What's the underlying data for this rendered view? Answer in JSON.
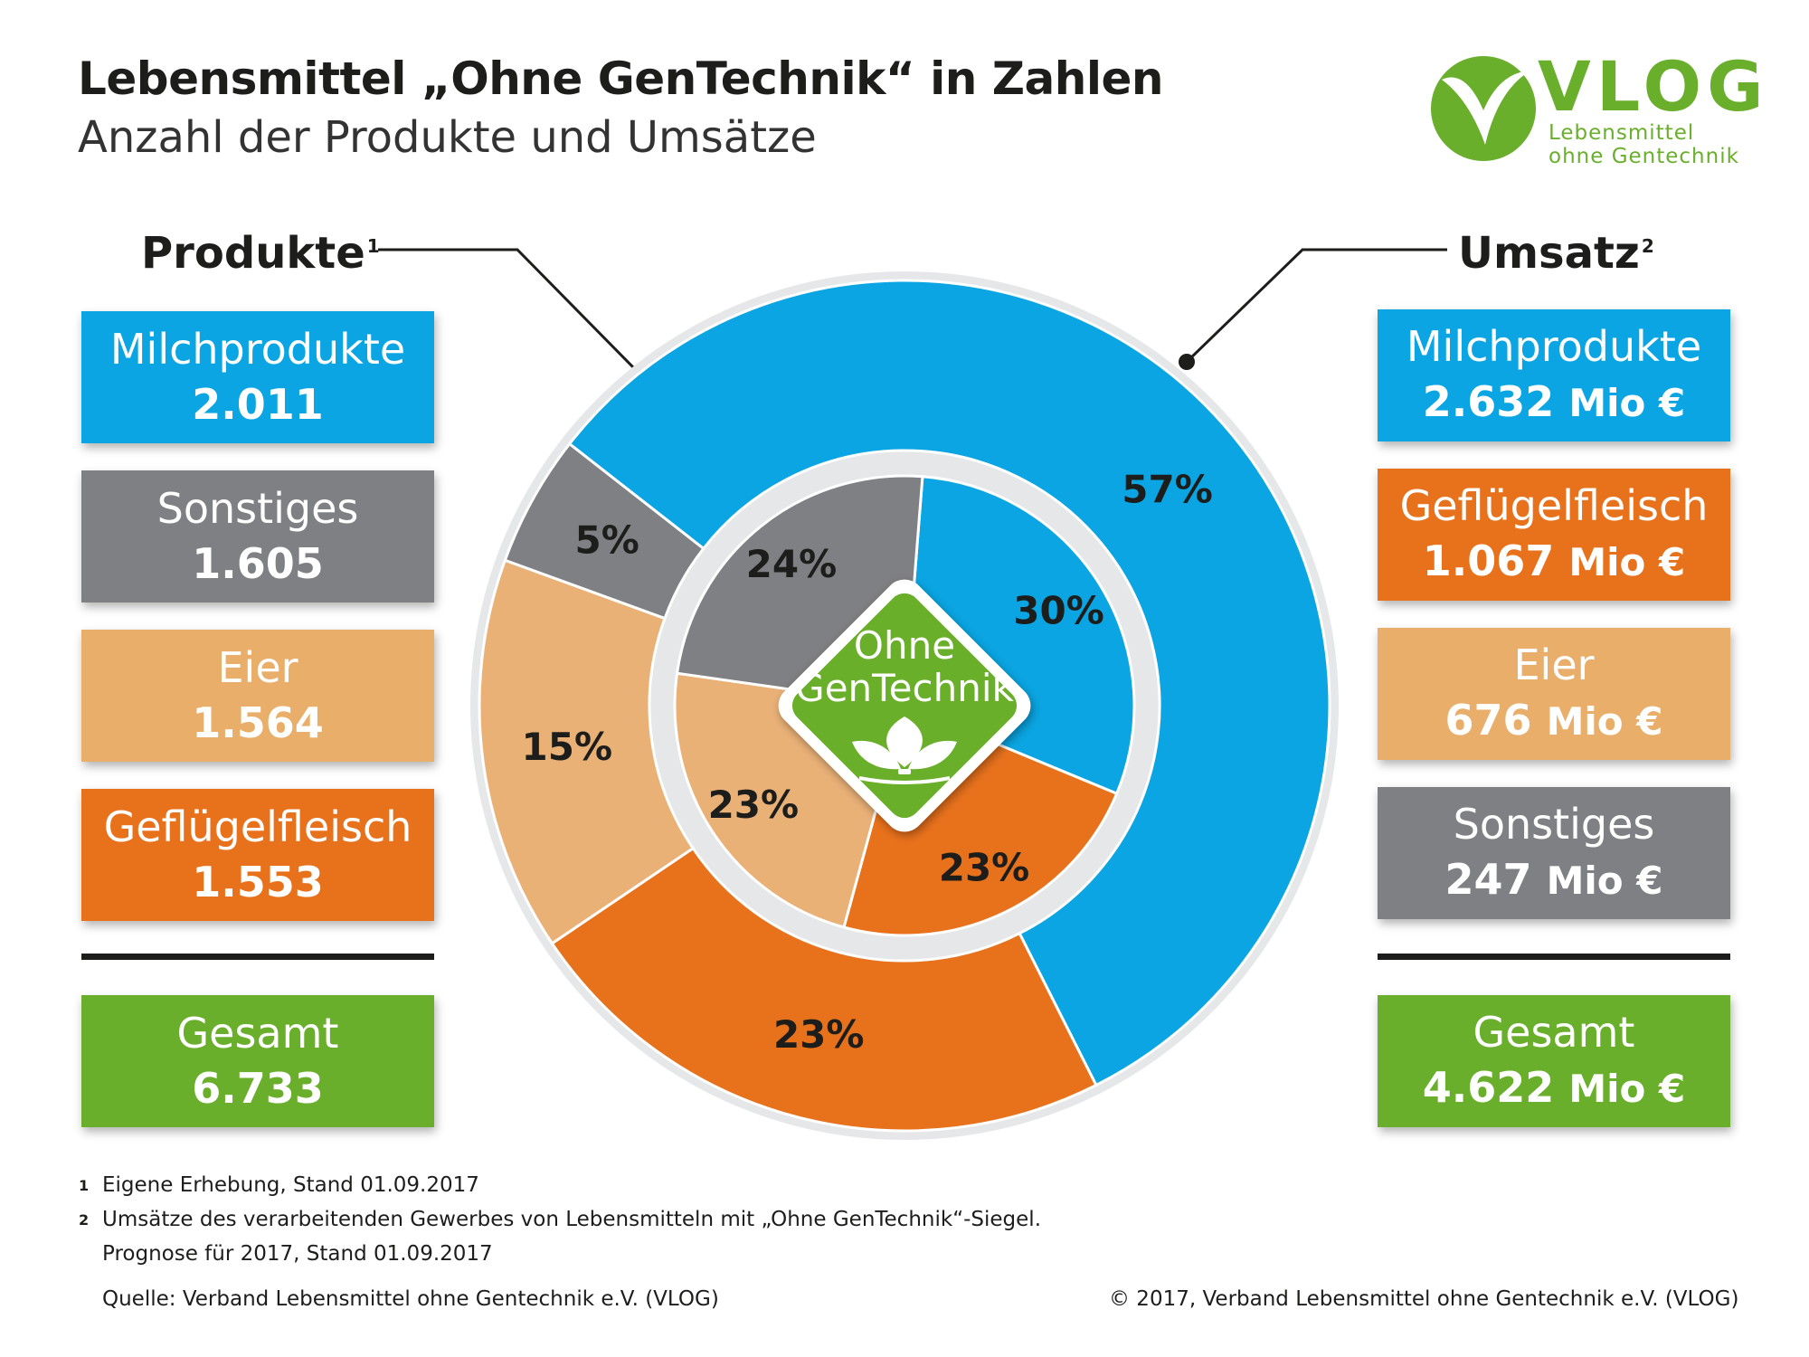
{
  "header": {
    "title": "Lebensmittel „Ohne GenTechnik“ in Zahlen",
    "subtitle": "Anzahl der Produkte und Umsätze"
  },
  "logo": {
    "name": "VLOG",
    "line1": "Lebensmittel",
    "line2": "ohne Gentechnik",
    "color": "#6aaf2c"
  },
  "seal": {
    "line1": "Ohne",
    "line2": "GenTechnik",
    "icon": "plant-icon"
  },
  "produkte": {
    "heading": "Produkte",
    "note": "1",
    "items": [
      {
        "label": "Milchprodukte",
        "value": "2.011",
        "color": "#0aa5e2"
      },
      {
        "label": "Sonstiges",
        "value": "1.605",
        "color": "#7f8083"
      },
      {
        "label": "Eier",
        "value": "1.564",
        "color": "#e9ae6a"
      },
      {
        "label": "Geflügelfleisch",
        "value": "1.553",
        "color": "#e8711c"
      }
    ],
    "total": {
      "label": "Gesamt",
      "value": "6.733",
      "color": "#6aaf2c"
    }
  },
  "umsatz": {
    "heading": "Umsatz",
    "note": "2",
    "items": [
      {
        "label": "Milchprodukte",
        "value": "2.632",
        "unit": "Mio €",
        "color": "#0aa5e2"
      },
      {
        "label": "Geflügelfleisch",
        "value": "1.067",
        "unit": "Mio €",
        "color": "#e8711c"
      },
      {
        "label": "Eier",
        "value": "676",
        "unit": "Mio €",
        "color": "#e9ae6a"
      },
      {
        "label": "Sonstiges",
        "value": "247",
        "unit": "Mio €",
        "color": "#7f8083"
      }
    ],
    "total": {
      "label": "Gesamt",
      "value": "4.622",
      "unit": "Mio €",
      "color": "#6aaf2c"
    }
  },
  "chart_data": [
    {
      "type": "pie",
      "ring": "inner",
      "series_name": "Produkte",
      "categories": [
        "Milchprodukte",
        "Geflügelfleisch",
        "Eier",
        "Sonstiges"
      ],
      "values": [
        30,
        23,
        23,
        24
      ],
      "labels": [
        "30%",
        "23%",
        "23%",
        "24%"
      ],
      "colors": [
        "#0aa5e2",
        "#e8711c",
        "#eab177",
        "#7f8083"
      ]
    },
    {
      "type": "pie",
      "ring": "outer",
      "series_name": "Umsatz",
      "categories": [
        "Milchprodukte",
        "Geflügelfleisch",
        "Eier",
        "Sonstiges"
      ],
      "values": [
        57,
        23,
        15,
        5
      ],
      "labels": [
        "57%",
        "23%",
        "15%",
        "5%"
      ],
      "colors": [
        "#0aa5e2",
        "#e8711c",
        "#eab177",
        "#7f8083"
      ]
    }
  ],
  "footnotes": [
    {
      "num": "1",
      "text": "Eigene Erhebung, Stand 01.09.2017"
    },
    {
      "num": "2",
      "text": "Umsätze des verarbeitenden Gewerbes von Lebensmitteln mit „Ohne GenTechnik“-Siegel."
    },
    {
      "num": "",
      "text": "Prognose für 2017, Stand 01.09.2017"
    }
  ],
  "source": "Quelle: Verband Lebensmittel ohne Gentechnik e.V. (VLOG)",
  "copyright": "© 2017, Verband Lebensmittel ohne Gentechnik e.V. (VLOG)"
}
